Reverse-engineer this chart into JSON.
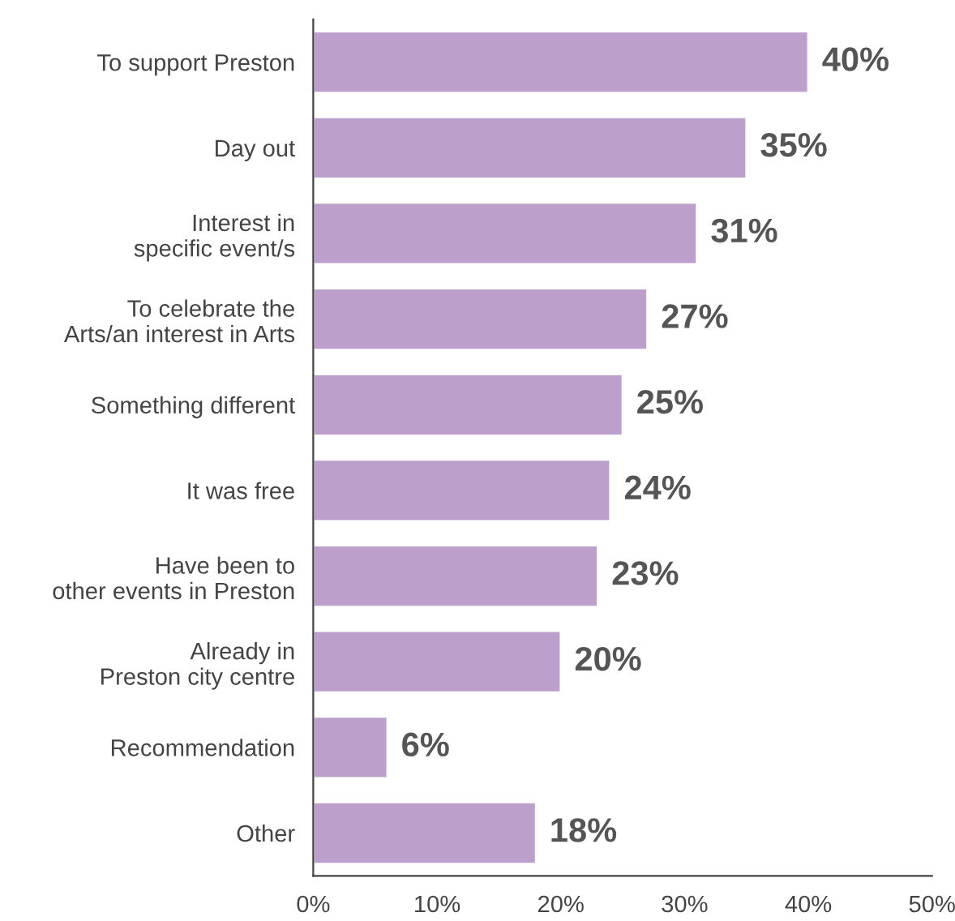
{
  "chart_data": {
    "type": "bar",
    "orientation": "horizontal",
    "categories": [
      "To support Preston",
      "Day out",
      "Interest in\nspecific event/s",
      "To celebrate the\nArts/an interest in Arts",
      "Something different",
      "It was free",
      "Have been to\nother events in Preston",
      "Already in\nPreston city centre",
      "Recommendation",
      "Other"
    ],
    "values": [
      40,
      35,
      31,
      27,
      25,
      24,
      23,
      20,
      6,
      18
    ],
    "value_labels": [
      "40%",
      "35%",
      "31%",
      "27%",
      "25%",
      "24%",
      "23%",
      "20%",
      "6%",
      "18%"
    ],
    "color": "#bca0cb",
    "xlim": [
      0,
      50
    ],
    "xticks": [
      {
        "value": 0,
        "label": "0%"
      },
      {
        "value": 10,
        "label": "10%"
      },
      {
        "value": 20,
        "label": "20%"
      },
      {
        "value": 30,
        "label": "30%"
      },
      {
        "value": 40,
        "label": "40%"
      },
      {
        "value": 50,
        "label": "50%"
      }
    ],
    "grid": false,
    "legend": false
  }
}
